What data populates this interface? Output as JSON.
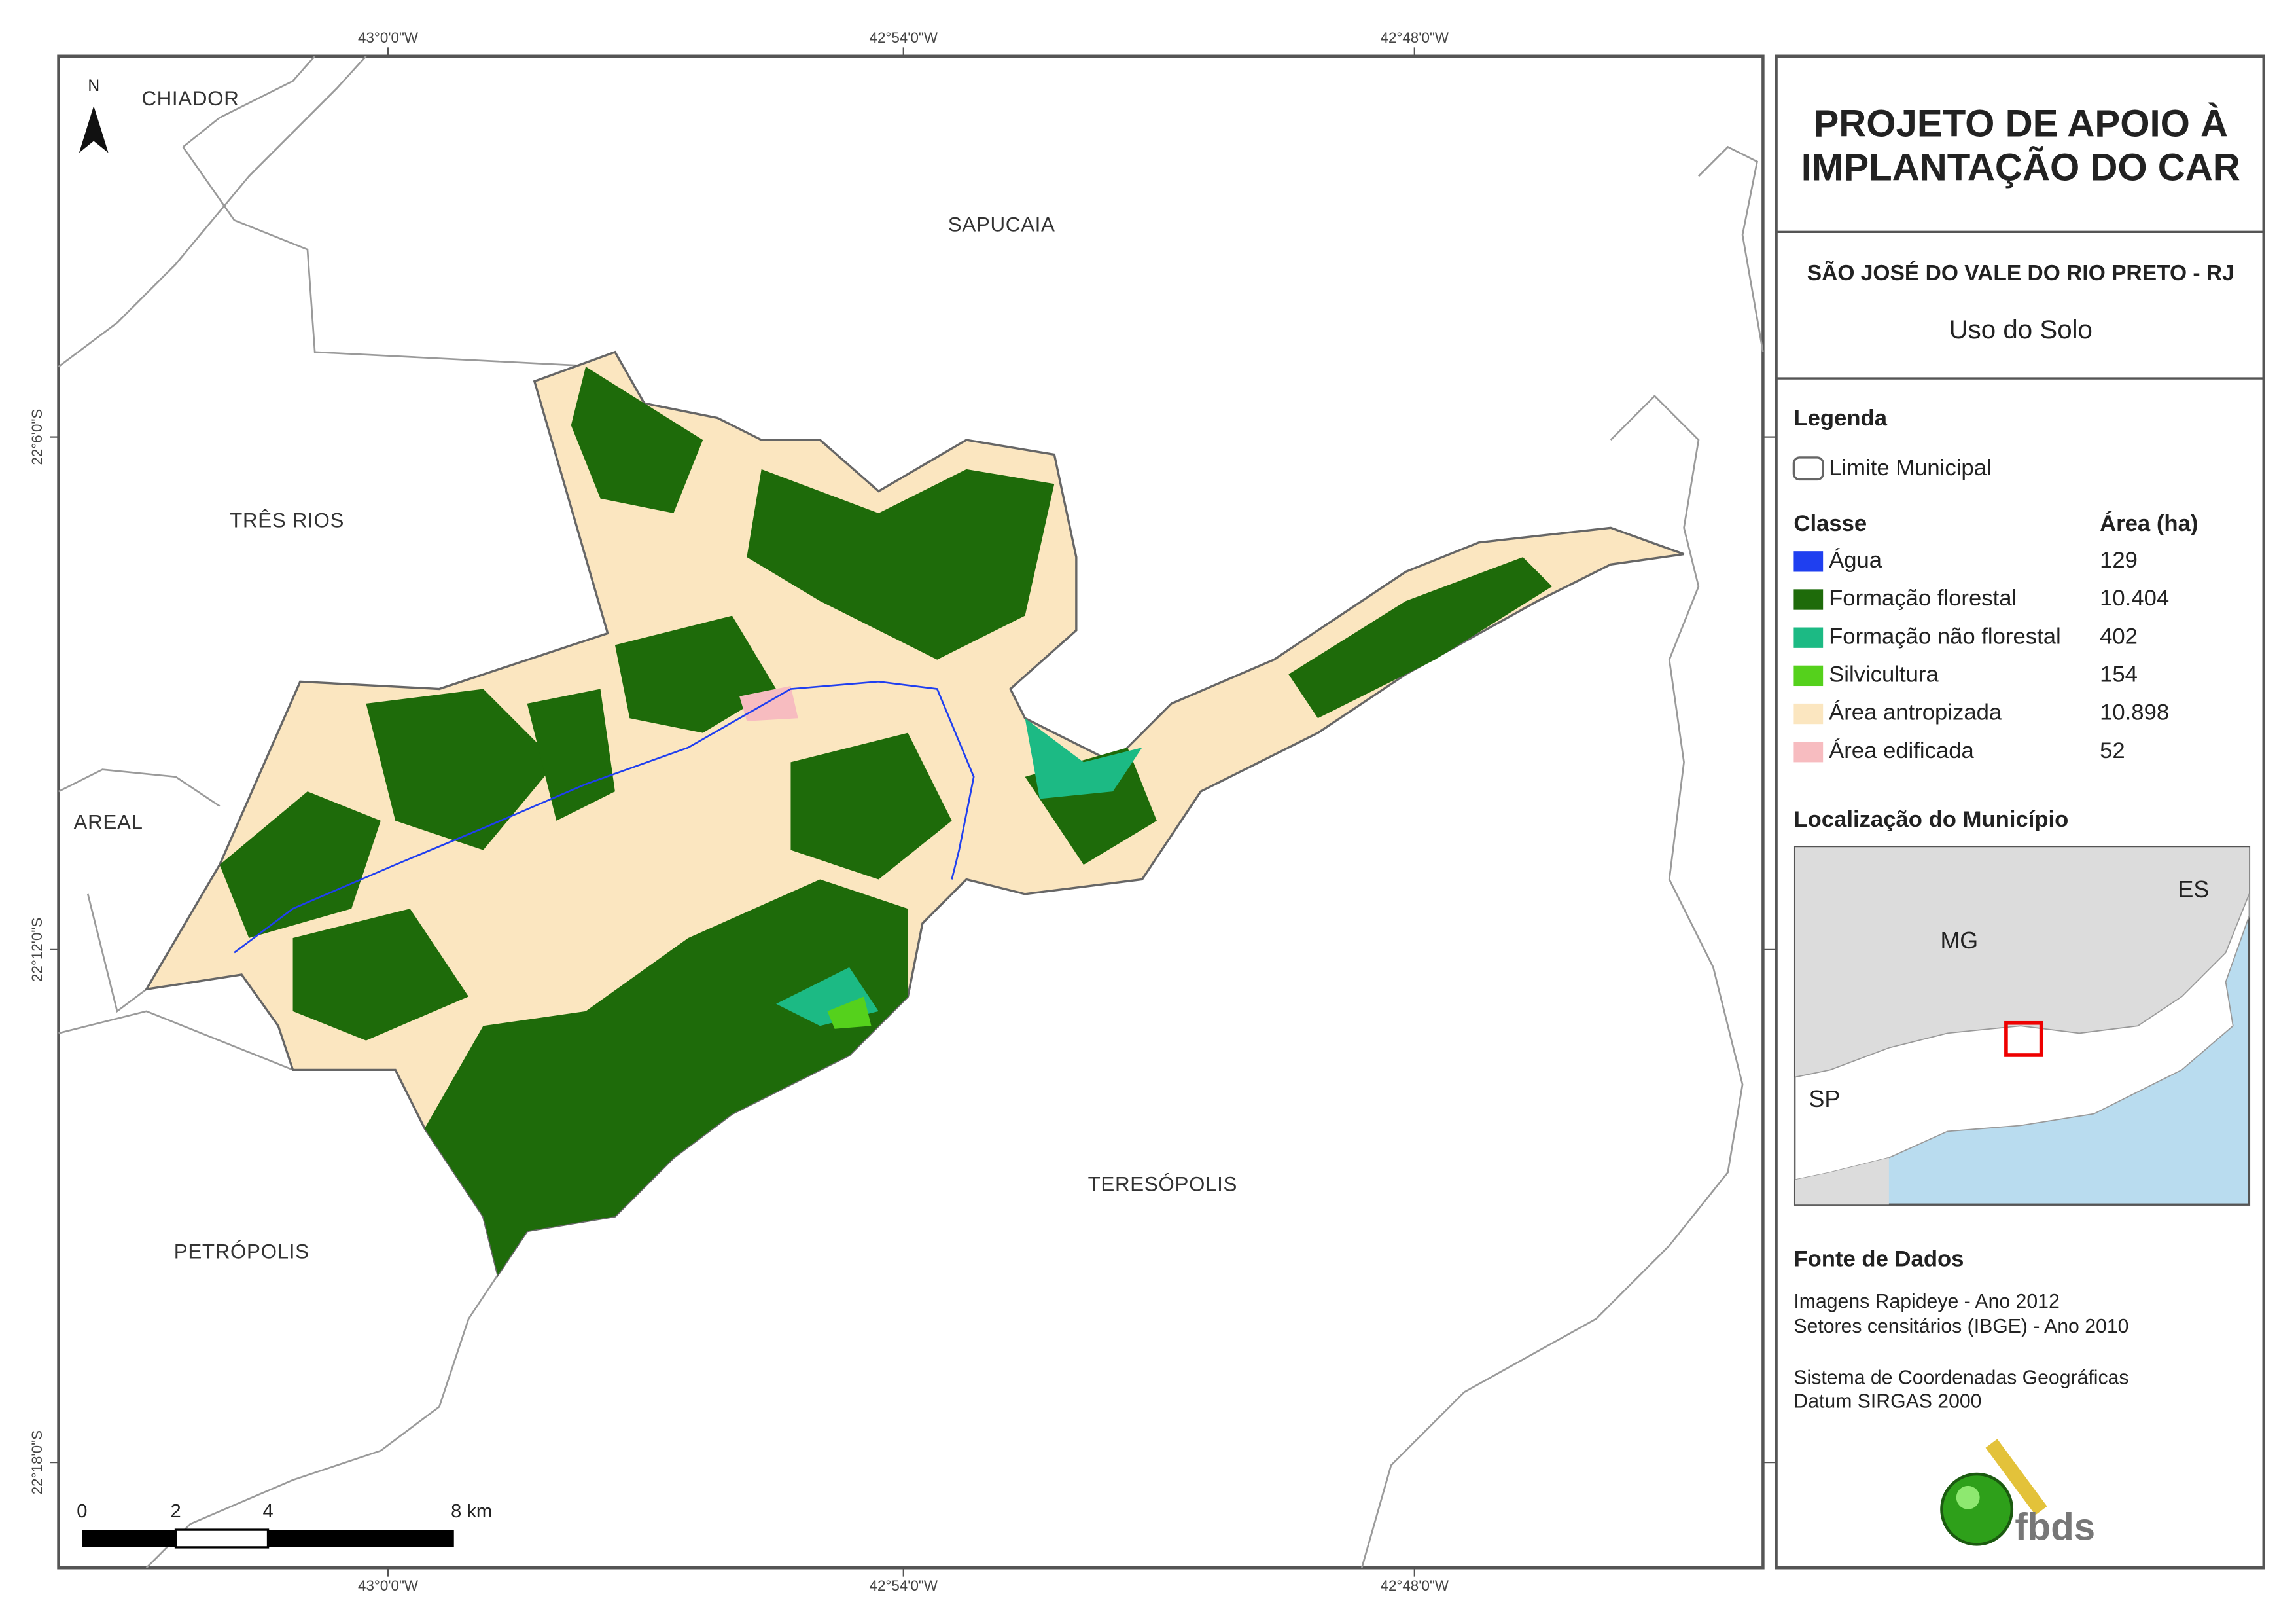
{
  "header": {
    "title_lines": [
      "PROJETO DE APOIO À",
      "IMPLANTAÇÃO DO CAR"
    ],
    "municipality": "SÃO JOSÉ DO VALE DO RIO PRETO - RJ",
    "map_theme": "Uso do Solo"
  },
  "legend": {
    "title": "Legenda",
    "boundary": "Limite Municipal",
    "class_header": "Classe",
    "area_header": "Área (ha)",
    "classes": [
      {
        "name": "Água",
        "area": "129",
        "color": "#1f3ff0"
      },
      {
        "name": "Formação florestal",
        "area": "10.404",
        "color": "#1e6b0a"
      },
      {
        "name": "Formação não florestal",
        "area": "402",
        "color": "#1cba84"
      },
      {
        "name": "Silvicultura",
        "area": "154",
        "color": "#55d11c"
      },
      {
        "name": "Área antropizada",
        "area": "10.898",
        "color": "#fbe6c0"
      },
      {
        "name": "Área edificada",
        "area": "52",
        "color": "#f7bcc0"
      }
    ]
  },
  "location": {
    "title": "Localização do Município",
    "labels": [
      "ES",
      "MG",
      "SP"
    ]
  },
  "sources": {
    "title": "Fonte de Dados",
    "lines": [
      "Imagens Rapideye - Ano 2012",
      "Setores censitários (IBGE) - Ano 2010",
      "Sistema de Coordenadas Geográficas",
      "Datum SIRGAS 2000"
    ]
  },
  "logo": "fbds",
  "map": {
    "north": "N",
    "place_labels": [
      "CHIADOR",
      "SAPUCAIA",
      "TRÊS RIOS",
      "AREAL",
      "TERESÓPOLIS",
      "PETRÓPOLIS"
    ],
    "longitude_labels": [
      "43°0'0\"W",
      "42°54'0\"W",
      "42°48'0\"W"
    ],
    "latitude_labels": [
      "22°6'0\"S",
      "22°12'0\"S",
      "22°18'0\"S"
    ],
    "scale_labels": [
      "0",
      "2",
      "4",
      "8 km"
    ]
  }
}
